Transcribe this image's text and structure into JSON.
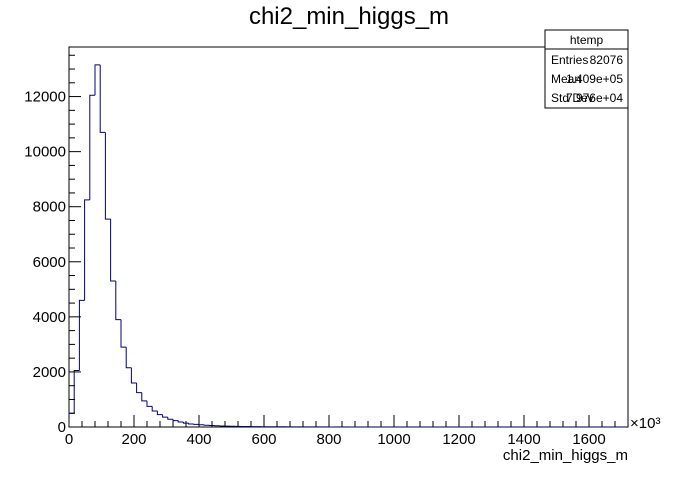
{
  "chart_data": {
    "type": "histogram",
    "title": "chi2_min_higgs_m",
    "xlabel": "chi2_min_higgs_m",
    "ylabel": "",
    "x_multiplier_label": "×10³",
    "xlim": [
      0,
      1720
    ],
    "ylim": [
      0,
      13800
    ],
    "bin_width": 16,
    "bin_start": 0,
    "x_ticks": [
      0,
      200,
      400,
      600,
      800,
      1000,
      1200,
      1400,
      1600
    ],
    "x_tick_labels": [
      "0",
      "200",
      "400",
      "600",
      "800",
      "1000",
      "1200",
      "1400",
      "1600"
    ],
    "y_ticks": [
      0,
      2000,
      4000,
      6000,
      8000,
      10000,
      12000
    ],
    "y_tick_labels": [
      "0",
      "2000",
      "4000",
      "6000",
      "8000",
      "10000",
      "12000"
    ],
    "line_color": "#000080",
    "values": [
      500,
      2050,
      4600,
      8250,
      12050,
      13150,
      10700,
      7550,
      5300,
      3900,
      2900,
      2150,
      1600,
      1250,
      950,
      750,
      580,
      450,
      360,
      280,
      230,
      180,
      140,
      110,
      95,
      80,
      65,
      55,
      45,
      38,
      32,
      28,
      24,
      20,
      17,
      15,
      13,
      11,
      10,
      9,
      8,
      7,
      6,
      5,
      5,
      4,
      4,
      3,
      3,
      3,
      2,
      2,
      2,
      2,
      1,
      1,
      1,
      1,
      1,
      1,
      1,
      1,
      1,
      1,
      1,
      1,
      1,
      1,
      1,
      1,
      1,
      1,
      1,
      1,
      1,
      1,
      1,
      1,
      1,
      1,
      1,
      1,
      1,
      1,
      1,
      1,
      1,
      1,
      1,
      1,
      1,
      1,
      1,
      1,
      1,
      1,
      1,
      1,
      1,
      1,
      1,
      1,
      1,
      1,
      1,
      1,
      1
    ]
  },
  "stats_box": {
    "name": "htemp",
    "entries_label": "Entries",
    "entries_value": "82076",
    "mean_label": "Mean",
    "mean_value": "1.409e+05",
    "stddev_label": "Std Dev",
    "stddev_value": "7.976e+04"
  }
}
